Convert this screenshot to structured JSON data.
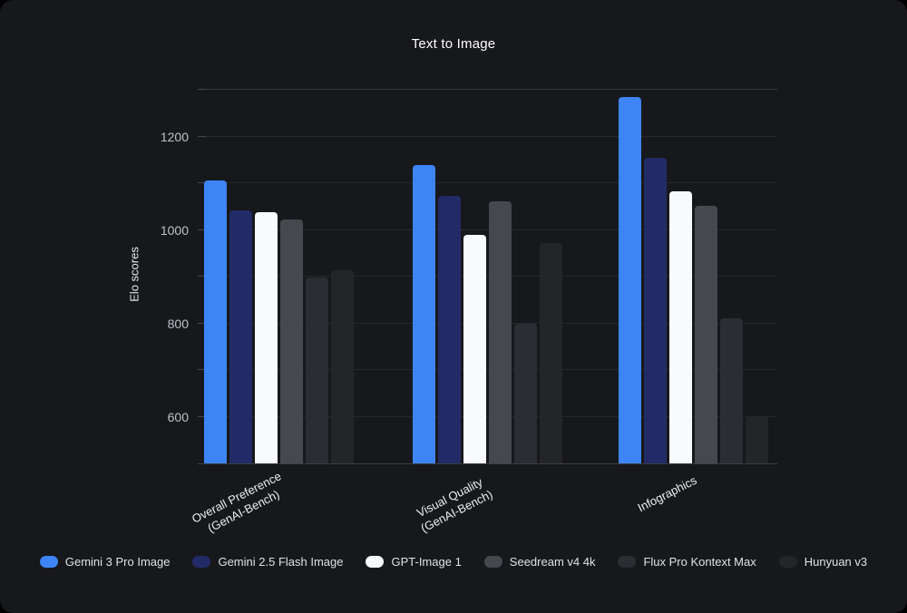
{
  "header": {
    "title": "Text to Image"
  },
  "colors": {
    "background": "#17181C",
    "grid": "#26282E",
    "grid_top": "#33353B",
    "axis_baseline": "#3C3E44",
    "tick_text": "#BDC1C6",
    "label_text": "#EDEFF1",
    "legend_text": "#DEE1E5",
    "title_text": "#FFFFFF"
  },
  "chart_data": {
    "type": "bar",
    "title": "Text to Image",
    "xlabel": "",
    "ylabel": "Elo scores",
    "ylim": [
      500,
      1300
    ],
    "ytick_values": [
      600,
      800,
      1000,
      1200
    ],
    "gridline_values": [
      600,
      700,
      800,
      900,
      1000,
      1100,
      1200,
      1300
    ],
    "grid": "on",
    "legend_position": "bottom",
    "categories": [
      "Overall Preference (GenAI-Bench)",
      "Visual Quality (GenAI-Bench)",
      "Infographics"
    ],
    "category_label_lines": [
      [
        "Overall Preference",
        "(GenAI-Bench)"
      ],
      [
        "Visual Quality",
        "(GenAI-Bench)"
      ],
      [
        "Infographics"
      ]
    ],
    "series": [
      {
        "name": "Gemini 3 Pro Image",
        "color": "#3D85F6",
        "values": [
          1105,
          1139,
          1284
        ]
      },
      {
        "name": "Gemini 2.5 Flash Image",
        "color": "#232B66",
        "values": [
          1041,
          1073,
          1154
        ]
      },
      {
        "name": "GPT-Image 1",
        "color": "#F8FAFC",
        "values": [
          1038,
          989,
          1083
        ]
      },
      {
        "name": "Seedream v4 4k",
        "color": "#46484D",
        "values": [
          1022,
          1061,
          1051
        ]
      },
      {
        "name": "Flux Pro Kontext Max",
        "color": "#2B2D32",
        "values": [
          899,
          799,
          811
        ]
      },
      {
        "name": "Hunyuan v3",
        "color": "#232529",
        "values": [
          913,
          972,
          601
        ]
      }
    ]
  }
}
